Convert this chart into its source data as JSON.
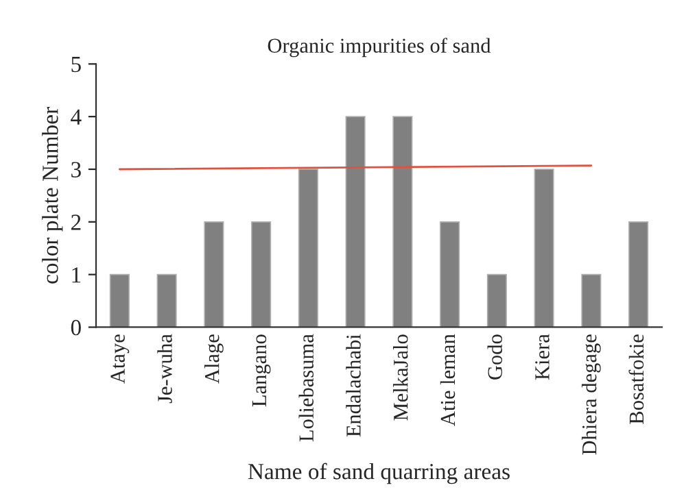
{
  "chart_data": {
    "type": "bar",
    "title": "Organic impurities of sand",
    "xlabel": "Name of sand quarring areas",
    "ylabel": "color plate Number",
    "categories": [
      "Ataye",
      "Je-wuha",
      "Alage",
      "Langano",
      "Loliebasuma",
      "Endalachabi",
      "MelkaJalo",
      "Atie leman",
      "Godo",
      "Kiera",
      "Dhiera degage",
      "Bosatfokie"
    ],
    "series": [
      {
        "color": "#808080",
        "values": [
          1,
          1,
          2,
          2,
          3,
          4,
          4,
          2,
          1,
          3,
          1,
          2
        ]
      },
      {
        "type": "line",
        "color": "#e0523f",
        "x": [
          "Ataye",
          "Dhiera degage"
        ],
        "values": [
          3,
          3.07
        ]
      }
    ],
    "ylim": [
      0,
      5
    ],
    "yticks": [
      0,
      1,
      2,
      3,
      4,
      5
    ],
    "grid": false
  }
}
